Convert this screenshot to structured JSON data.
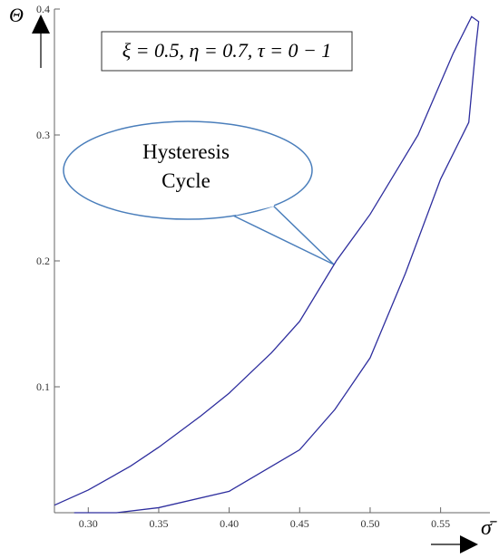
{
  "chart_data": {
    "type": "line",
    "y_label": "Θ",
    "x_label": "σ̄",
    "parameters": "ξ = 0.5, η = 0.7, τ = 0 − 1",
    "callout": [
      "Hysteresis",
      "Cycle"
    ],
    "x": [
      0.276,
      0.3,
      0.33,
      0.35,
      0.38,
      0.4,
      0.43,
      0.45,
      0.476,
      0.5,
      0.534,
      0.559,
      0.572,
      0.577,
      0.575,
      0.57,
      0.55,
      0.525,
      0.5,
      0.475,
      0.45,
      0.4,
      0.35,
      0.32,
      0.3,
      0.29
    ],
    "series": [
      {
        "name": "Hysteresis Cycle",
        "color": "#2e2e9e",
        "values": [
          0.006,
          0.018,
          0.037,
          0.052,
          0.077,
          0.095,
          0.127,
          0.152,
          0.2,
          0.237,
          0.3,
          0.365,
          0.394,
          0.39,
          0.37,
          0.31,
          0.265,
          0.19,
          0.123,
          0.082,
          0.05,
          0.017,
          0.004,
          0.0,
          0.0,
          0.0
        ]
      }
    ],
    "xlim": [
      0.276,
      0.585
    ],
    "ylim": [
      0,
      0.4
    ],
    "xticks": [
      {
        "value": 0.3,
        "label": "0.30"
      },
      0.35,
      {
        "value": 0.4,
        "label": "0.40"
      },
      0.45,
      {
        "value": 0.5,
        "label": "0.50"
      },
      0.55
    ],
    "yticks": [
      0.1,
      0.2,
      0.3,
      0.4
    ]
  }
}
